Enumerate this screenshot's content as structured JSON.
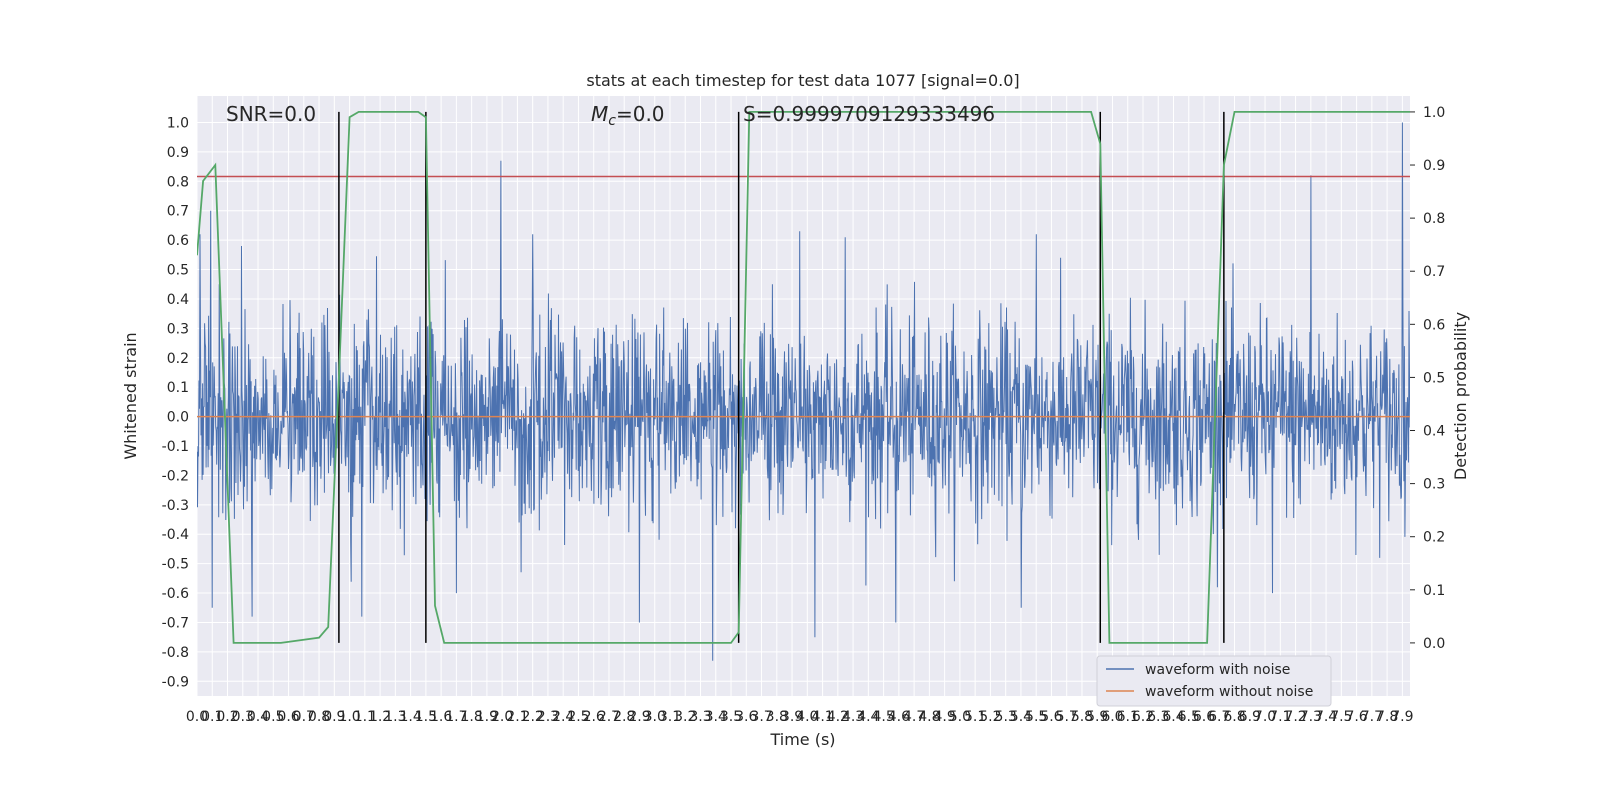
{
  "chart_data": {
    "type": "line",
    "title": "stats at each timestep for test data 1077 [signal=0.0]",
    "xlabel": "Time (s)",
    "ylabel": "Whitened strain",
    "ylabel_right": "Detection probability",
    "xlim": [
      0.0,
      7.95
    ],
    "ylim": [
      -0.95,
      1.09
    ],
    "ylim_right": [
      -0.1,
      1.03
    ],
    "x_ticks": [
      0.0,
      0.1,
      0.2,
      0.3,
      0.4,
      0.5,
      0.6,
      0.7,
      0.8,
      0.9,
      1.0,
      1.1,
      1.2,
      1.3,
      1.4,
      1.5,
      1.6,
      1.7,
      1.8,
      1.9,
      2.0,
      2.1,
      2.2,
      2.3,
      2.4,
      2.5,
      2.6,
      2.7,
      2.8,
      2.9,
      3.0,
      3.1,
      3.2,
      3.3,
      3.4,
      3.5,
      3.6,
      3.7,
      3.8,
      3.9,
      4.0,
      4.1,
      4.2,
      4.3,
      4.4,
      4.5,
      4.6,
      4.7,
      4.8,
      4.9,
      5.0,
      5.1,
      5.2,
      5.3,
      5.4,
      5.5,
      5.6,
      5.7,
      5.8,
      5.9,
      6.0,
      6.1,
      6.2,
      6.3,
      6.4,
      6.5,
      6.6,
      6.7,
      6.8,
      6.9,
      7.0,
      7.1,
      7.2,
      7.3,
      7.4,
      7.5,
      7.6,
      7.7,
      7.8,
      7.9
    ],
    "y_ticks": [
      -0.9,
      -0.8,
      -0.7,
      -0.6,
      -0.5,
      -0.4,
      -0.3,
      -0.2,
      -0.1,
      0.0,
      0.1,
      0.2,
      0.3,
      0.4,
      0.5,
      0.6,
      0.7,
      0.8,
      0.9,
      1.0
    ],
    "y_ticks_right": [
      0.0,
      0.1,
      0.2,
      0.3,
      0.4,
      0.5,
      0.6,
      0.7,
      0.8,
      0.9,
      1.0
    ],
    "annotations": {
      "snr": "SNR=0.0",
      "mc_symbol": "M",
      "mc_sub": "c",
      "mc_value": "=0.0",
      "s": "S=0.9999709129333496"
    },
    "threshold_y": 0.8165,
    "vertical_lines_x": [
      0.93,
      1.5,
      3.55,
      5.92,
      6.73
    ],
    "noise": {
      "typical_amplitude": 0.3,
      "peaks_pos": [
        [
          0.02,
          0.62
        ],
        [
          0.09,
          0.7
        ],
        [
          0.1,
          0.58
        ],
        [
          0.29,
          0.58
        ],
        [
          1.7,
          0.6
        ],
        [
          1.99,
          0.87
        ],
        [
          2.2,
          0.62
        ],
        [
          3.95,
          0.63
        ],
        [
          4.25,
          0.61
        ],
        [
          5.5,
          0.62
        ],
        [
          7.3,
          0.82
        ],
        [
          7.9,
          1.0
        ]
      ],
      "peaks_neg": [
        [
          0.1,
          -0.65
        ],
        [
          0.36,
          -0.68
        ],
        [
          1.08,
          -0.68
        ],
        [
          1.7,
          -0.6
        ],
        [
          2.9,
          -0.7
        ],
        [
          3.38,
          -0.83
        ],
        [
          4.05,
          -0.75
        ],
        [
          4.58,
          -0.7
        ],
        [
          5.4,
          -0.65
        ],
        [
          7.05,
          -0.6
        ]
      ]
    },
    "series": [
      {
        "name": "waveform with noise",
        "color": "#4c72b0"
      },
      {
        "name": "waveform without noise",
        "color": "#dd8452",
        "constant": 0.0
      },
      {
        "color": "#55a868",
        "axis": "right",
        "x": [
          0.0,
          0.04,
          0.12,
          0.24,
          0.3,
          0.55,
          0.8,
          0.86,
          0.93,
          1.0,
          1.06,
          1.2,
          1.45,
          1.5,
          1.56,
          1.62,
          1.8,
          3.4,
          3.5,
          3.55,
          3.62,
          3.75,
          5.86,
          5.92,
          5.98,
          6.62,
          6.73,
          6.8,
          7.95
        ],
        "y": [
          0.73,
          0.87,
          0.9,
          0.0,
          0.0,
          0.0,
          0.01,
          0.03,
          0.5,
          0.99,
          1.0,
          1.0,
          1.0,
          0.99,
          0.07,
          0.0,
          0.0,
          0.0,
          0.0,
          0.02,
          1.0,
          1.0,
          1.0,
          0.94,
          0.0,
          0.0,
          0.9,
          1.0,
          1.0
        ]
      },
      {
        "color": "#c44e52",
        "constant": 0.8165
      }
    ],
    "legend": {
      "placement": "lower-right",
      "entries": [
        "waveform with noise",
        "waveform without noise"
      ]
    },
    "grid": true
  }
}
